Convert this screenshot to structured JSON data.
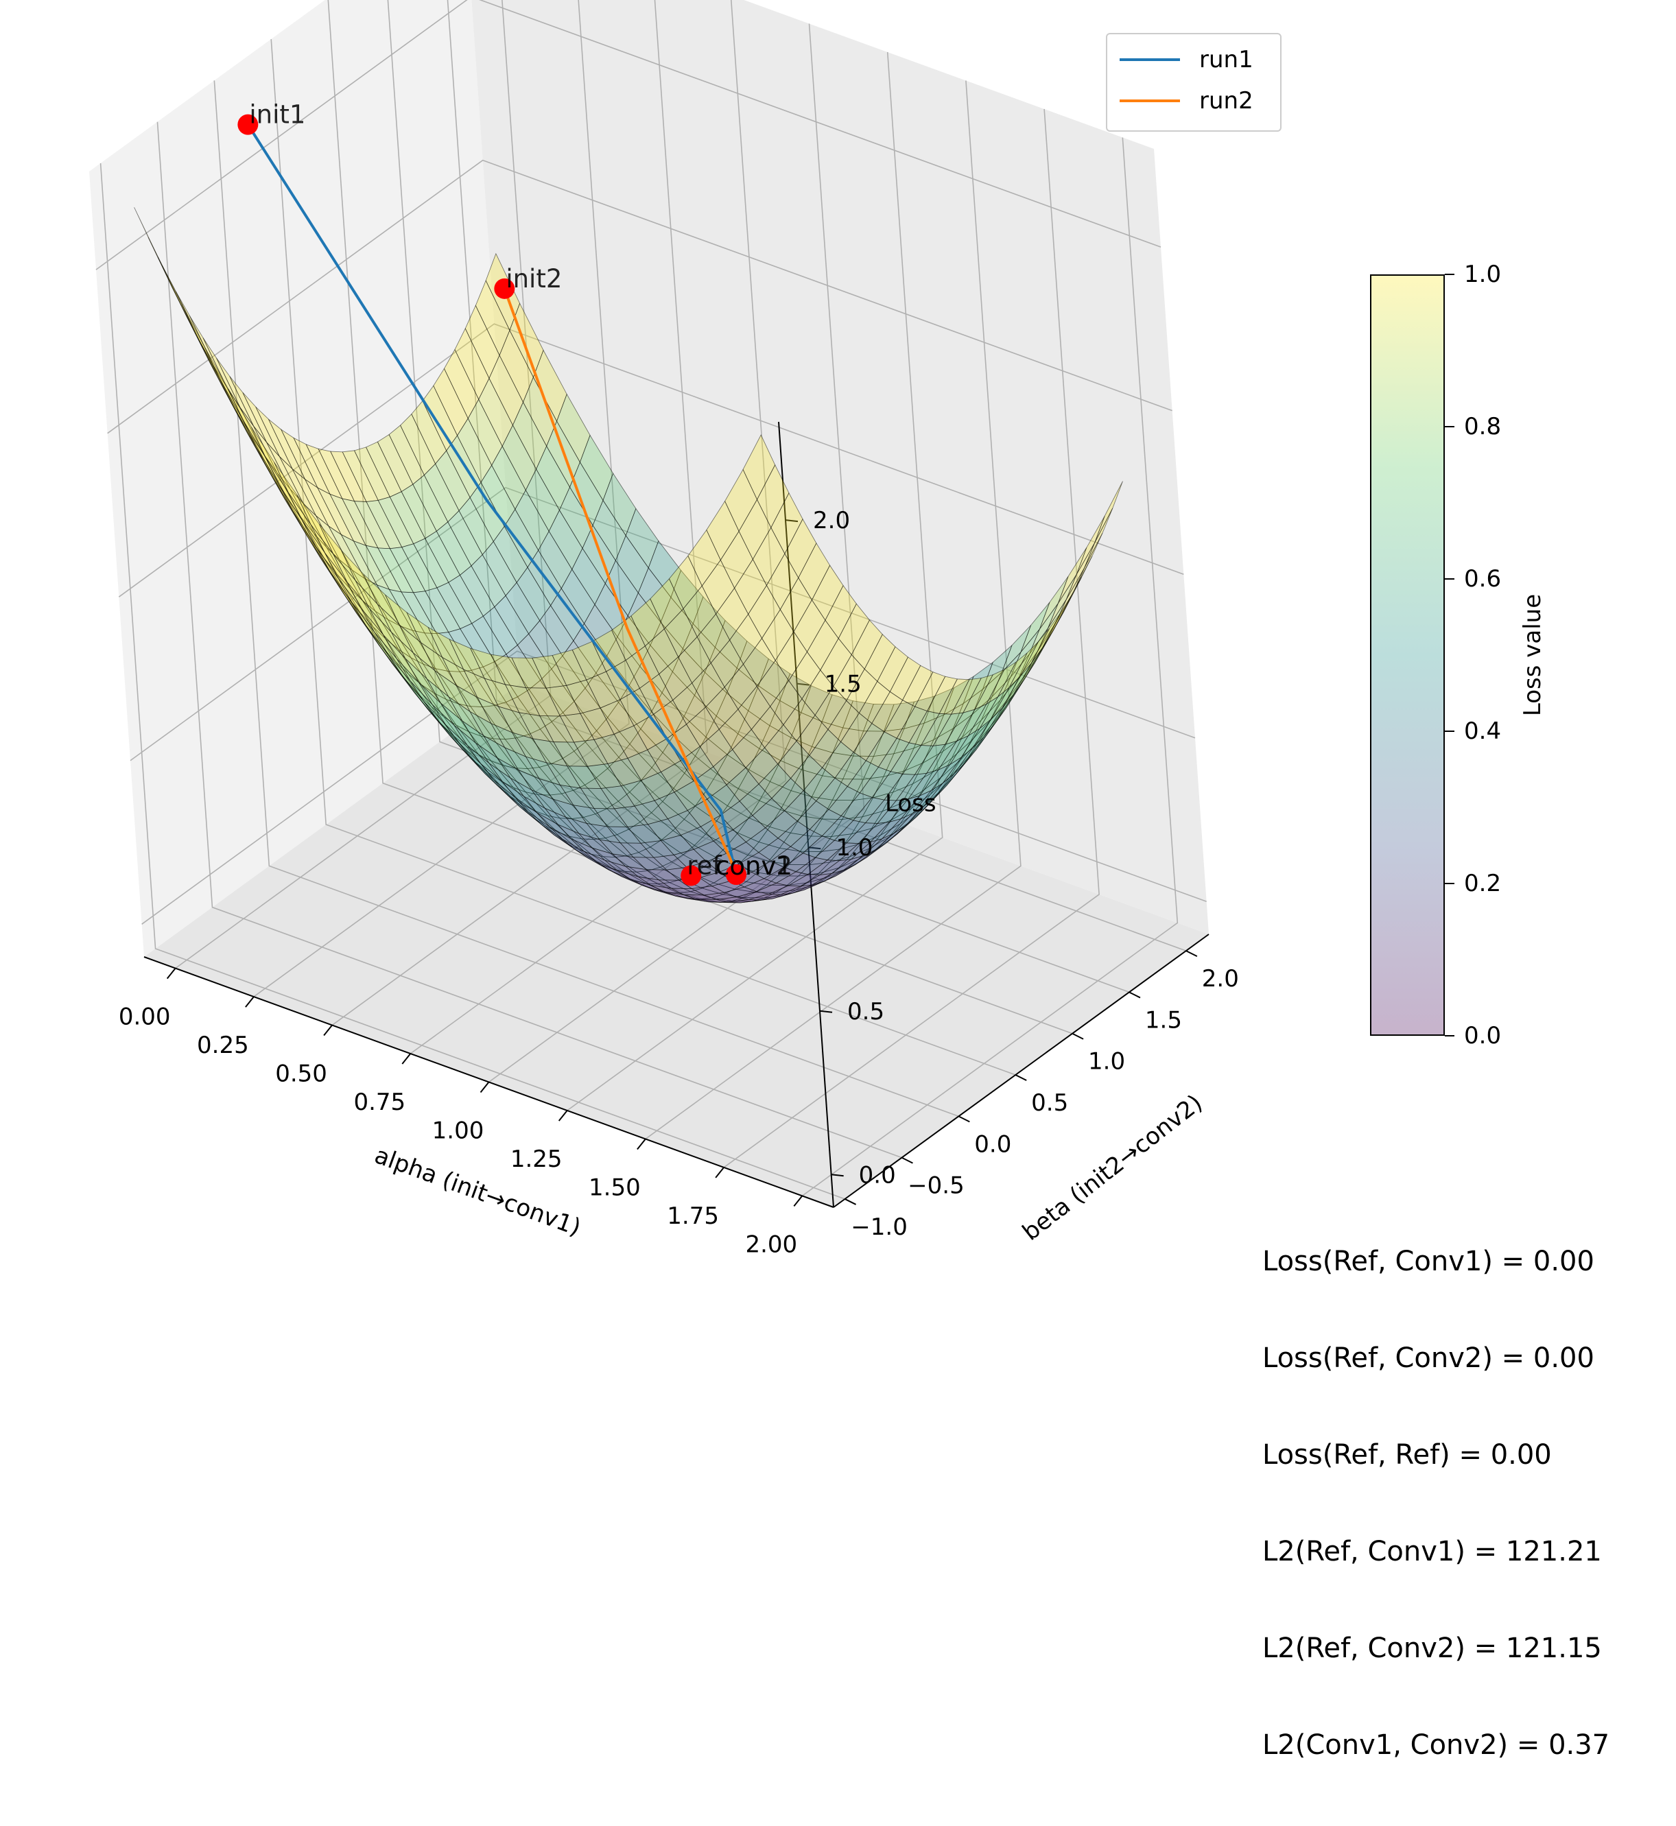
{
  "chart_data": {
    "type": "surface3d",
    "title": "",
    "xlabel": "alpha (init→conv1)",
    "ylabel": "beta (init2→conv2)",
    "zlabel": "Loss",
    "xlim": [
      -0.1,
      2.1
    ],
    "ylim": [
      -1.1,
      2.2
    ],
    "zlim": [
      -0.1,
      2.3
    ],
    "x_ticks": [
      "0.00",
      "0.25",
      "0.50",
      "0.75",
      "1.00",
      "1.25",
      "1.50",
      "1.75",
      "2.00"
    ],
    "y_ticks": [
      "−1.0",
      "−0.5",
      "0.0",
      "0.5",
      "1.0",
      "1.5",
      "2.0"
    ],
    "z_ticks": [
      "0.0",
      "0.5",
      "1.0",
      "1.5",
      "2.0"
    ],
    "grid": true,
    "surface": {
      "colormap": "viridis",
      "alpha": 0.3,
      "x_range": [
        0,
        2
      ],
      "y_range": [
        -1,
        2
      ],
      "formula": "(1 - alpha)^2 + 0.3 * (beta - 1)^2"
    },
    "series": [
      {
        "name": "run1",
        "color": "#1f77b4",
        "points": [
          [
            0,
            0,
            2.2
          ],
          [
            0.5,
            0.5,
            1.1
          ],
          [
            1.0,
            1.0,
            0.2
          ],
          [
            1.02,
            1.04,
            0.0
          ]
        ]
      },
      {
        "name": "run2",
        "color": "#ff7f0e",
        "points": [
          [
            0.02,
            2.0,
            1.2
          ],
          [
            0.52,
            1.55,
            0.45
          ],
          [
            1.0,
            1.05,
            0.04
          ],
          [
            1.02,
            1.04,
            0.0
          ]
        ]
      }
    ],
    "markers": [
      {
        "label": "init1",
        "x": 0,
        "y": 0,
        "z": 2.2
      },
      {
        "label": "init2",
        "x": 0.02,
        "y": 2.0,
        "z": 1.2
      },
      {
        "label": "ref",
        "x": 1,
        "y": 1,
        "z": 0
      },
      {
        "label": "conv1",
        "x": 1.02,
        "y": 1.04,
        "z": 0
      },
      {
        "label": "conv2",
        "x": 1.02,
        "y": 1.04,
        "z": 0
      }
    ],
    "legend": {
      "placement": "top-right",
      "entries": [
        "run1",
        "run2"
      ]
    },
    "colorbar": {
      "label": "Loss value",
      "range": [
        0,
        1
      ],
      "ticks": [
        "0.0",
        "0.2",
        "0.4",
        "0.6",
        "0.8",
        "1.0"
      ]
    }
  },
  "stats": [
    "Loss(Ref, Conv1) = 0.00",
    "Loss(Ref, Conv2) = 0.00",
    "Loss(Ref, Ref) = 0.00",
    "L2(Ref, Conv1) = 121.21",
    "L2(Ref, Conv2) = 121.15",
    "L2(Conv1, Conv2) = 0.37"
  ]
}
